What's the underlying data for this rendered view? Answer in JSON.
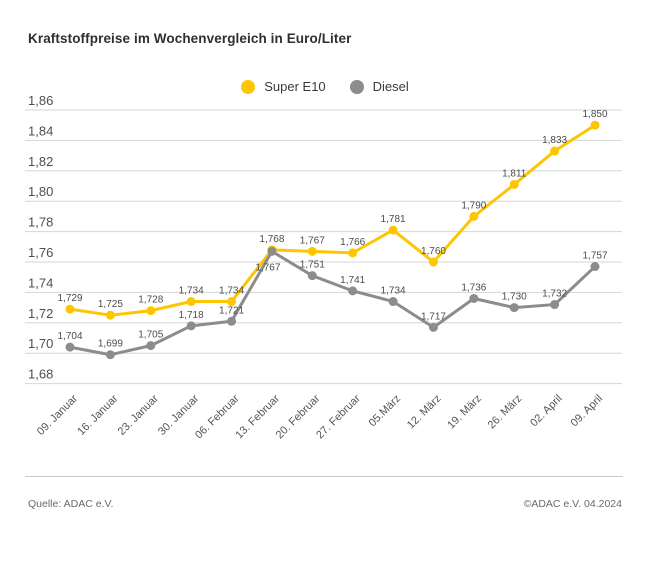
{
  "title": "Kraftstoffpreise im Wochenvergleich in Euro/Liter",
  "legend": [
    {
      "name": "Super E10",
      "color": "#fdc600"
    },
    {
      "name": "Diesel",
      "color": "#8c8c8c"
    }
  ],
  "footer": {
    "source": "Quelle: ADAC e.V.",
    "copyright": "©ADAC e.V. 04.2024"
  },
  "chart_data": {
    "type": "line",
    "title": "Kraftstoffpreise im Wochenvergleich in Euro/Liter",
    "xlabel": "",
    "ylabel": "Euro/Liter",
    "ylim": [
      1.68,
      1.86
    ],
    "grid": true,
    "legend_position": "top-center",
    "x": [
      "09. Januar",
      "16. Januar",
      "23. Januar",
      "30. Januar",
      "06. Februar",
      "13. Februar",
      "20. Februar",
      "27. Februar",
      "05.März",
      "12. März",
      "19. März",
      "26. März",
      "02. April",
      "09. April"
    ],
    "yticks": {
      "labels": [
        "1,86",
        "1,84",
        "1,82",
        "1,80",
        "1,78",
        "1,76",
        "1,74",
        "1,72",
        "1,70",
        "1,68"
      ],
      "values": [
        1.86,
        1.84,
        1.82,
        1.8,
        1.78,
        1.76,
        1.74,
        1.72,
        1.7,
        1.68
      ]
    },
    "series": [
      {
        "name": "Super E10",
        "color": "#fdc600",
        "values": [
          1.729,
          1.725,
          1.728,
          1.734,
          1.734,
          1.768,
          1.767,
          1.766,
          1.781,
          1.76,
          1.79,
          1.811,
          1.833,
          1.85
        ],
        "labels": [
          "1,729",
          "1,725",
          "1,728",
          "1,734",
          "1,734",
          "1,768",
          "1,767",
          "1,766",
          "1,781",
          "1,760",
          "1,790",
          "1,811",
          "1,833",
          "1,850"
        ]
      },
      {
        "name": "Diesel",
        "color": "#8c8c8c",
        "values": [
          1.704,
          1.699,
          1.705,
          1.718,
          1.721,
          1.767,
          1.751,
          1.741,
          1.734,
          1.717,
          1.736,
          1.73,
          1.732,
          1.757
        ],
        "labels": [
          "1,704",
          "1,699",
          "1,705",
          "1,718",
          "1,721",
          "1,767",
          "1,751",
          "1,741",
          "1,734",
          "1,717",
          "1,736",
          "1,730",
          "1,732",
          "1,757"
        ]
      }
    ]
  }
}
